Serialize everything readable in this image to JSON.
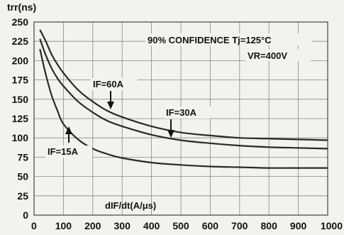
{
  "chart_data": {
    "type": "line",
    "ylabel": "trr(ns)",
    "xlabel": "dIF/dt(A/μs)",
    "xlim": [
      0,
      1000
    ],
    "ylim": [
      0,
      250
    ],
    "x_ticks": [
      "0",
      "100",
      "200",
      "300",
      "400",
      "500",
      "600",
      "700",
      "800",
      "900",
      "1000"
    ],
    "y_ticks": [
      "0",
      "25",
      "50",
      "75",
      "100",
      "125",
      "150",
      "175",
      "200",
      "225",
      "250"
    ],
    "grid": true,
    "annotations": [
      "90% CONFIDENCE Tj=125°C",
      "VR=400V"
    ],
    "series": [
      {
        "name": "IF=60A",
        "x": [
          20,
          40,
          60,
          80,
          100,
          150,
          200,
          250,
          300,
          400,
          500,
          600,
          700,
          800,
          900,
          1000
        ],
        "y": [
          240,
          225,
          208,
          195,
          184,
          162,
          147,
          135,
          127,
          115,
          107,
          103,
          100,
          99,
          98,
          97
        ]
      },
      {
        "name": "IF=30A",
        "x": [
          20,
          40,
          60,
          80,
          100,
          150,
          200,
          250,
          300,
          400,
          500,
          600,
          700,
          800,
          900,
          1000
        ],
        "y": [
          228,
          207,
          190,
          177,
          167,
          147,
          133,
          122,
          115,
          104,
          97,
          93,
          90,
          88,
          87,
          86
        ]
      },
      {
        "name": "IF=15A",
        "x": [
          20,
          40,
          60,
          80,
          100,
          150,
          200,
          250,
          300,
          400,
          500,
          600,
          700,
          800,
          900,
          1000
        ],
        "y": [
          215,
          182,
          155,
          135,
          118,
          98,
          86,
          79,
          74,
          68,
          65,
          63,
          62,
          61,
          61,
          61
        ]
      }
    ]
  }
}
